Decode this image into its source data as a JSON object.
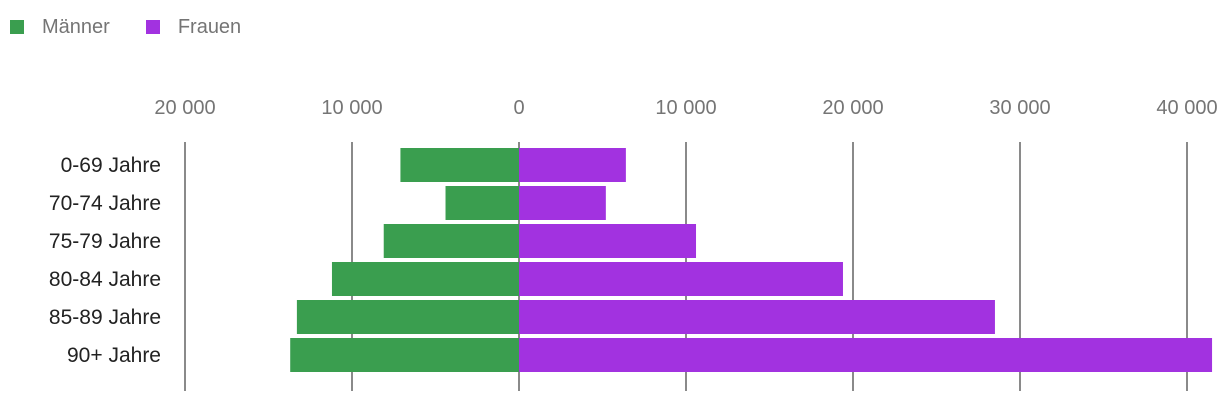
{
  "chart_data": {
    "type": "bar",
    "orientation": "horizontal-population-pyramid",
    "categories": [
      "0-69 Jahre",
      "70-74 Jahre",
      "75-79 Jahre",
      "80-84 Jahre",
      "85-89 Jahre",
      "90+ Jahre"
    ],
    "series": [
      {
        "name": "Männer",
        "color": "#3a9e4f",
        "direction": "left",
        "values": [
          7100,
          4400,
          8100,
          11200,
          13300,
          13700
        ]
      },
      {
        "name": "Frauen",
        "color": "#a232e0",
        "direction": "right",
        "values": [
          6400,
          5200,
          10600,
          19400,
          28500,
          41500
        ]
      }
    ],
    "xticks": [
      {
        "value": -20000,
        "label": "20 000"
      },
      {
        "value": -10000,
        "label": "10 000"
      },
      {
        "value": 0,
        "label": "0"
      },
      {
        "value": 10000,
        "label": "10 000"
      },
      {
        "value": 20000,
        "label": "20 000"
      },
      {
        "value": 30000,
        "label": "30 000"
      },
      {
        "value": 40000,
        "label": "40 000"
      }
    ],
    "xlim": [
      -20000,
      40000
    ],
    "grid": true,
    "legend_position": "top-left",
    "title": "",
    "xlabel": "",
    "ylabel": ""
  }
}
